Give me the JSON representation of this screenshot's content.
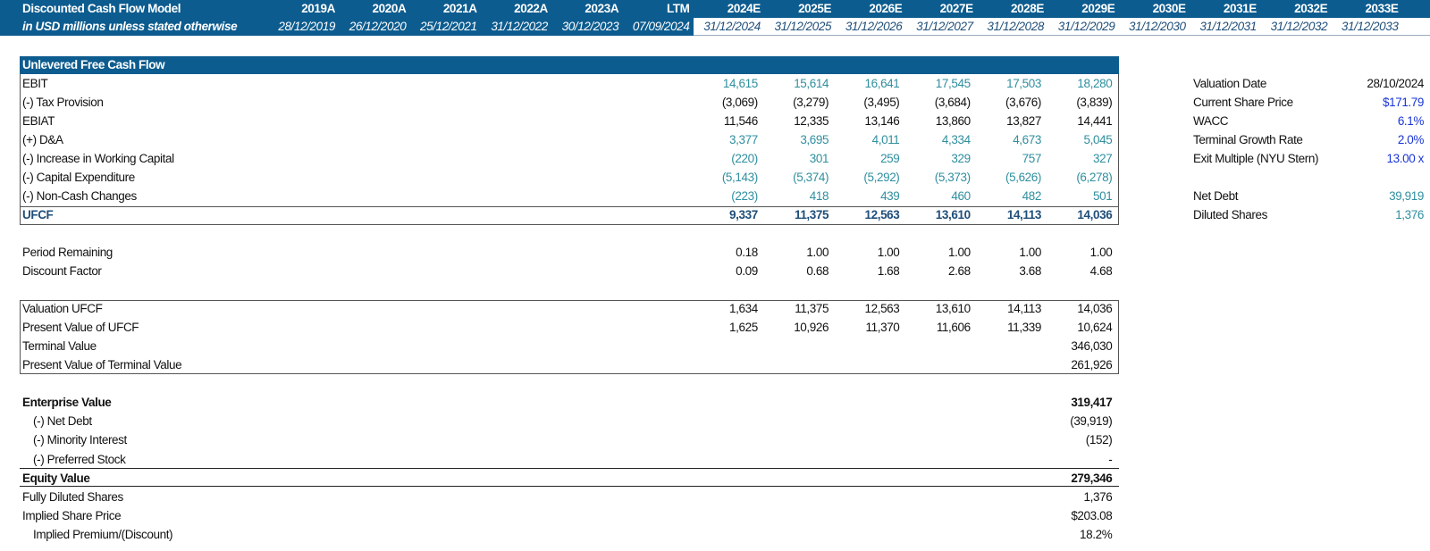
{
  "header": {
    "title": "Discounted Cash Flow Model",
    "subtitle": "in USD millions unless stated otherwise",
    "columns": [
      {
        "year": "2019A",
        "date": "28/12/2019"
      },
      {
        "year": "2020A",
        "date": "26/12/2020"
      },
      {
        "year": "2021A",
        "date": "25/12/2021"
      },
      {
        "year": "2022A",
        "date": "31/12/2022"
      },
      {
        "year": "2023A",
        "date": "30/12/2023"
      },
      {
        "year": "LTM",
        "date": "07/09/2024"
      },
      {
        "year": "2024E",
        "date": "31/12/2024"
      },
      {
        "year": "2025E",
        "date": "31/12/2025"
      },
      {
        "year": "2026E",
        "date": "31/12/2026"
      },
      {
        "year": "2027E",
        "date": "31/12/2027"
      },
      {
        "year": "2028E",
        "date": "31/12/2028"
      },
      {
        "year": "2029E",
        "date": "31/12/2029"
      },
      {
        "year": "2030E",
        "date": "31/12/2030"
      },
      {
        "year": "2031E",
        "date": "31/12/2031"
      },
      {
        "year": "2032E",
        "date": "31/12/2032"
      },
      {
        "year": "2033E",
        "date": "31/12/2033"
      }
    ]
  },
  "ufcf": {
    "title": "Unlevered Free Cash Flow",
    "rows": [
      {
        "label": "EBIT",
        "values": [
          "14,615",
          "15,614",
          "16,641",
          "17,545",
          "17,503",
          "18,280"
        ]
      },
      {
        "label": "(-) Tax Provision",
        "values": [
          "(3,069)",
          "(3,279)",
          "(3,495)",
          "(3,684)",
          "(3,676)",
          "(3,839)"
        ]
      },
      {
        "label": "EBIAT",
        "values": [
          "11,546",
          "12,335",
          "13,146",
          "13,860",
          "13,827",
          "14,441"
        ]
      },
      {
        "label": "(+) D&A",
        "values": [
          "3,377",
          "3,695",
          "4,011",
          "4,334",
          "4,673",
          "5,045"
        ]
      },
      {
        "label": "(-) Increase in Working Capital",
        "values": [
          "(220)",
          "301",
          "259",
          "329",
          "757",
          "327"
        ]
      },
      {
        "label": "(-) Capital Expenditure",
        "values": [
          "(5,143)",
          "(5,374)",
          "(5,292)",
          "(5,373)",
          "(5,626)",
          "(6,278)"
        ]
      },
      {
        "label": "(-) Non-Cash Changes",
        "values": [
          "(223)",
          "418",
          "439",
          "460",
          "482",
          "501"
        ]
      },
      {
        "label": "UFCF",
        "values": [
          "9,337",
          "11,375",
          "12,563",
          "13,610",
          "14,113",
          "14,036"
        ]
      }
    ]
  },
  "discounting": {
    "rows": [
      {
        "label": "Period Remaining",
        "values": [
          "0.18",
          "1.00",
          "1.00",
          "1.00",
          "1.00",
          "1.00"
        ]
      },
      {
        "label": "Discount Factor",
        "values": [
          "0.09",
          "0.68",
          "1.68",
          "2.68",
          "3.68",
          "4.68"
        ]
      }
    ]
  },
  "present_value": {
    "rows": [
      {
        "label": "Valuation UFCF",
        "values": [
          "1,634",
          "11,375",
          "12,563",
          "13,610",
          "14,113",
          "14,036"
        ]
      },
      {
        "label": "Present Value of UFCF",
        "values": [
          "1,625",
          "10,926",
          "11,370",
          "11,606",
          "11,339",
          "10,624"
        ]
      },
      {
        "label": "Terminal Value",
        "value": "346,030"
      },
      {
        "label": "Present Value of Terminal Value",
        "value": "261,926"
      }
    ]
  },
  "bridge": {
    "rows": [
      {
        "label": "Enterprise Value",
        "value": "319,417"
      },
      {
        "label": "(-) Net Debt",
        "value": "(39,919)"
      },
      {
        "label": "(-) Minority Interest",
        "value": "(152)"
      },
      {
        "label": "(-) Preferred Stock",
        "value": "-"
      },
      {
        "label": "Equity Value",
        "value": "279,346"
      },
      {
        "label": "Fully Diluted Shares",
        "value": "1,376"
      },
      {
        "label": "Implied Share Price",
        "value": "$203.08"
      },
      {
        "label": "Implied Premium/(Discount)",
        "value": "18.2%"
      }
    ]
  },
  "assumptions": {
    "rows": [
      {
        "label": "Valuation Date",
        "value": "28/10/2024"
      },
      {
        "label": "Current Share Price",
        "value": "$171.79"
      },
      {
        "label": "WACC",
        "value": "6.1%"
      },
      {
        "label": "Terminal Growth Rate",
        "value": "2.0%"
      },
      {
        "label": "Exit Multiple (NYU Stern)",
        "value": "13.00 x"
      },
      {
        "label": "Net Debt",
        "value": "39,919"
      },
      {
        "label": "Diluted Shares",
        "value": "1,376"
      }
    ]
  }
}
